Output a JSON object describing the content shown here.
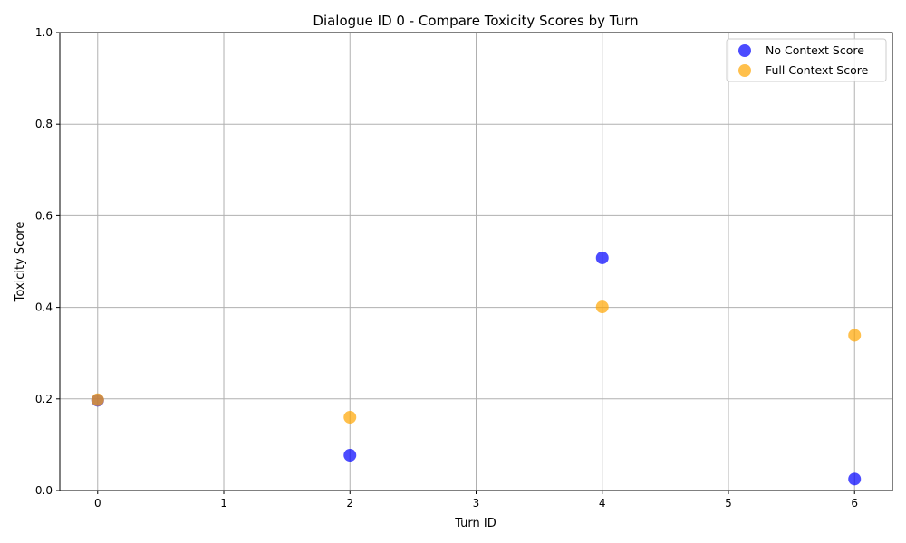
{
  "chart_data": {
    "type": "scatter",
    "title": "Dialogue ID 0 - Compare Toxicity Scores by Turn",
    "xlabel": "Turn ID",
    "ylabel": "Toxicity Score",
    "xlim": [
      -0.3,
      6.3
    ],
    "ylim": [
      0,
      1
    ],
    "xticks": [
      0,
      1,
      2,
      3,
      4,
      5,
      6
    ],
    "yticks": [
      0.0,
      0.2,
      0.4,
      0.6,
      0.8,
      1.0
    ],
    "xtick_labels": [
      "0",
      "1",
      "2",
      "3",
      "4",
      "5",
      "6"
    ],
    "ytick_labels": [
      "0.0",
      "0.2",
      "0.4",
      "0.6",
      "0.8",
      "1.0"
    ],
    "grid": true,
    "legend_position": "top-right",
    "series": [
      {
        "name": "No Context Score",
        "color": "#0000ff",
        "x": [
          0,
          2,
          4,
          6
        ],
        "y": [
          0.197,
          0.077,
          0.508,
          0.025
        ]
      },
      {
        "name": "Full Context Score",
        "color": "#ffa500",
        "x": [
          0,
          2,
          4,
          6
        ],
        "y": [
          0.198,
          0.16,
          0.401,
          0.339
        ]
      }
    ]
  }
}
